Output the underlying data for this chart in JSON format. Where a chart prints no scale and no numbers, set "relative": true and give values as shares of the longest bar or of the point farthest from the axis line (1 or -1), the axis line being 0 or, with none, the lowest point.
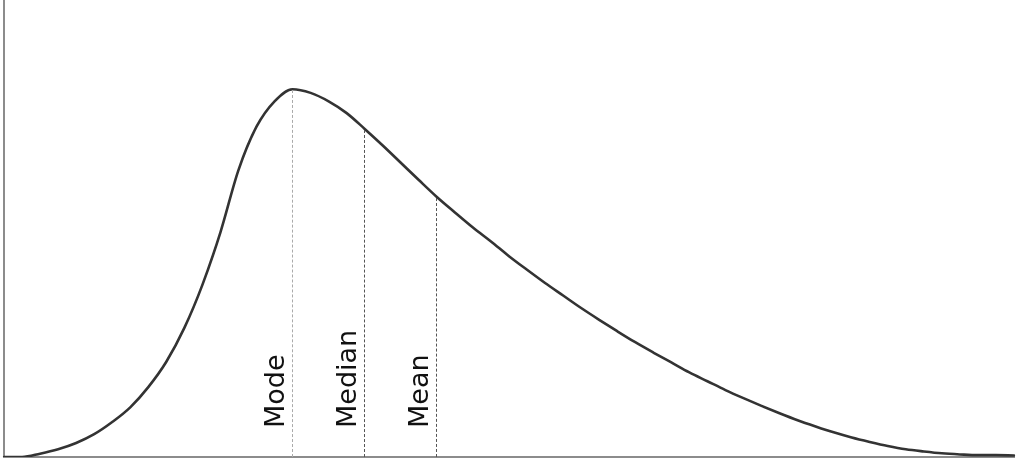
{
  "chart_data": {
    "type": "line",
    "relative": true,
    "categories": [
      null,
      null,
      null,
      null,
      null,
      null,
      null,
      null,
      null,
      null,
      null,
      null,
      null,
      null,
      null,
      null,
      null,
      null,
      null,
      null,
      null,
      null,
      null,
      null,
      null,
      null,
      null,
      null,
      null,
      null,
      null,
      null,
      null,
      null,
      null,
      null,
      null,
      null,
      null,
      null,
      null,
      null,
      null,
      null,
      null,
      null,
      null,
      null,
      null,
      null,
      null,
      null,
      null,
      null,
      null,
      null,
      null
    ],
    "series": [
      {
        "color": "#333333",
        "values": [
          0,
          0,
          0.009,
          0.021,
          0.038,
          0.062,
          0.095,
          0.135,
          0.19,
          0.259,
          0.351,
          0.468,
          0.611,
          0.78,
          0.898,
          0.967,
          1,
          0.99,
          0.967,
          0.935,
          0.892,
          0.847,
          0.8,
          0.753,
          0.707,
          0.665,
          0.624,
          0.586,
          0.546,
          0.509,
          0.473,
          0.439,
          0.405,
          0.373,
          0.342,
          0.312,
          0.284,
          0.257,
          0.23,
          0.206,
          0.182,
          0.16,
          0.139,
          0.119,
          0.1,
          0.083,
          0.067,
          0.053,
          0.041,
          0.03,
          0.021,
          0.015,
          0.01,
          0.007,
          0.005,
          0.005,
          0.004
        ]
      }
    ],
    "annotations": [
      "Mode",
      "Median",
      "Mean"
    ],
    "line_style": "solid"
  }
}
